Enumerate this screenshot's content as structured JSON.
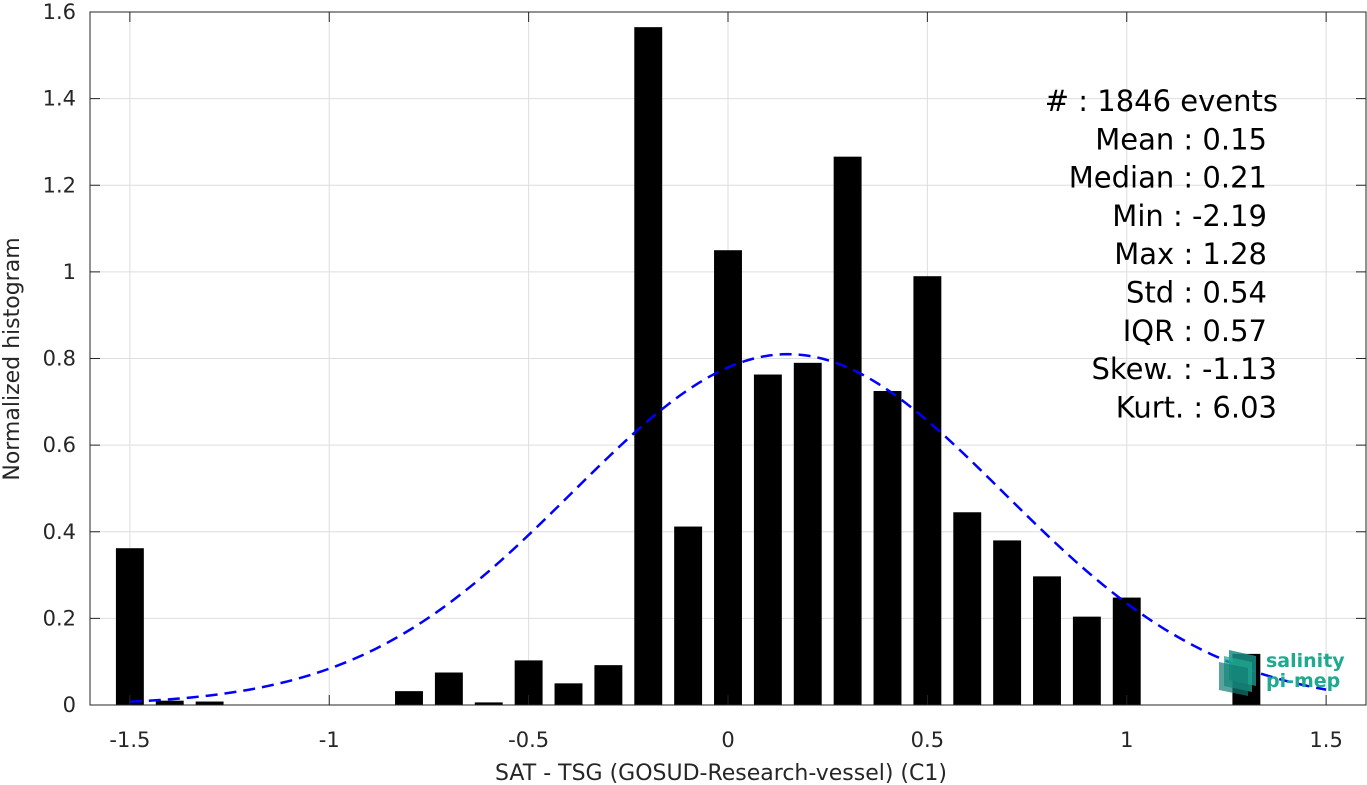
{
  "chart_data": {
    "type": "bar",
    "xlabel": "SAT - TSG (GOSUD-Research-vessel) (C1)",
    "ylabel": "Normalized histogram",
    "xlim": [
      -1.6,
      1.6
    ],
    "ylim": [
      0,
      1.6
    ],
    "xticks": [
      -1.5,
      -1,
      -0.5,
      0,
      0.5,
      1,
      1.5
    ],
    "xtick_labels": [
      "-1.5",
      "-1",
      "-0.5",
      "0",
      "0.5",
      "1",
      "1.5"
    ],
    "yticks": [
      0,
      0.2,
      0.4,
      0.6,
      0.8,
      1,
      1.2,
      1.4,
      1.6
    ],
    "ytick_labels": [
      "0",
      "0.2",
      "0.4",
      "0.6",
      "0.8",
      "1",
      "1.2",
      "1.4",
      "1.6"
    ],
    "grid": true,
    "bar_width": 0.07,
    "bars": {
      "x": [
        -1.5,
        -1.4,
        -1.3,
        -0.8,
        -0.7,
        -0.6,
        -0.5,
        -0.4,
        -0.3,
        -0.2,
        -0.1,
        0.0,
        0.1,
        0.2,
        0.3,
        0.4,
        0.5,
        0.6,
        0.7,
        0.8,
        0.9,
        1.0,
        1.3
      ],
      "values": [
        0.362,
        0.01,
        0.008,
        0.032,
        0.075,
        0.006,
        0.103,
        0.05,
        0.092,
        1.565,
        0.412,
        1.05,
        0.763,
        0.79,
        1.266,
        0.725,
        0.99,
        0.445,
        0.38,
        0.297,
        0.204,
        0.248,
        0.118
      ],
      "color": "#000000"
    },
    "fit": {
      "type": "gaussian",
      "mean": 0.15,
      "std": 0.54,
      "peak": 0.81,
      "x_range": [
        -1.5,
        1.5
      ],
      "color": "#0000ff",
      "style": "dashed"
    },
    "annotations": [
      "#  : 1846 events",
      "Mean : 0.15",
      "Median : 0.21",
      "Min : -2.19",
      "Max : 1.28",
      "Std : 0.54",
      "IQR : 0.57",
      "Skew. : -1.13",
      "Kurt. : 6.03"
    ]
  },
  "logo": {
    "line1": "salinity",
    "line2": "pi-mep",
    "color": "#1fa98f"
  }
}
